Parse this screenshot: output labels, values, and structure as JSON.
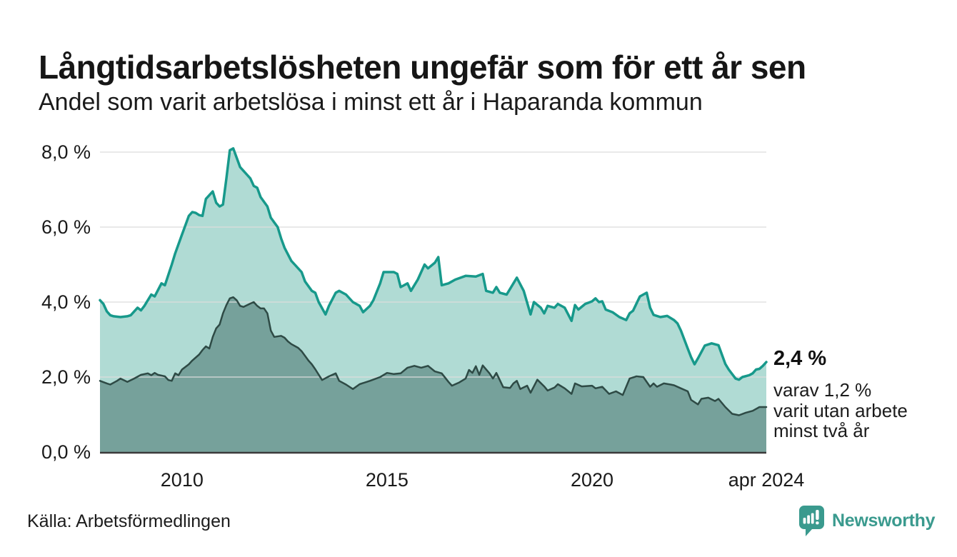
{
  "header": {
    "title": "Långtidsarbetslösheten ungefär som för ett år sen",
    "subtitle": "Andel som varit arbetslösa i minst ett år i Haparanda kommun"
  },
  "chart_data": {
    "type": "area",
    "title": "Långtidsarbetslösheten ungefär som för ett år sen",
    "subtitle": "Andel som varit arbetslösa i minst ett år i Haparanda kommun",
    "x_unit": "months since Jan 2008",
    "xlim_months": [
      0,
      195
    ],
    "ylim": [
      0,
      8.4
    ],
    "grid": true,
    "legend": "none",
    "grid_color": "#dcdcdc",
    "baseline_color": "#3b3b3b",
    "y_ticks": [
      {
        "value": 0,
        "label": "0,0 %"
      },
      {
        "value": 2,
        "label": "2,0 %"
      },
      {
        "value": 4,
        "label": "4,0 %"
      },
      {
        "value": 6,
        "label": "6,0 %"
      },
      {
        "value": 8,
        "label": "8,0 %"
      }
    ],
    "x_ticks": [
      {
        "month": 24,
        "label": "2010"
      },
      {
        "month": 84,
        "label": "2015"
      },
      {
        "month": 144,
        "label": "2020"
      },
      {
        "month": 195,
        "label": "apr 2024"
      }
    ],
    "series": [
      {
        "id": "minst-ett-ar",
        "name": "Andel arbetslösa minst ett år",
        "color": "#17998b",
        "fill": "#b0dbd4",
        "stroke_width": 3.5,
        "last_value_label": "2,4 %",
        "points": [
          [
            0,
            4.05
          ],
          [
            1,
            3.95
          ],
          [
            2,
            3.75
          ],
          [
            3,
            3.65
          ],
          [
            4,
            3.62
          ],
          [
            6,
            3.6
          ],
          [
            8,
            3.62
          ],
          [
            9,
            3.65
          ],
          [
            11,
            3.85
          ],
          [
            12,
            3.78
          ],
          [
            13,
            3.9
          ],
          [
            15,
            4.2
          ],
          [
            16,
            4.15
          ],
          [
            18,
            4.5
          ],
          [
            19,
            4.45
          ],
          [
            21,
            5.0
          ],
          [
            22,
            5.3
          ],
          [
            24,
            5.8
          ],
          [
            26,
            6.3
          ],
          [
            27,
            6.4
          ],
          [
            28,
            6.38
          ],
          [
            29,
            6.32
          ],
          [
            30,
            6.3
          ],
          [
            31,
            6.75
          ],
          [
            33,
            6.95
          ],
          [
            34,
            6.65
          ],
          [
            35,
            6.55
          ],
          [
            36,
            6.6
          ],
          [
            37,
            7.3
          ],
          [
            38,
            8.05
          ],
          [
            39,
            8.1
          ],
          [
            40,
            7.85
          ],
          [
            41,
            7.6
          ],
          [
            42,
            7.5
          ],
          [
            43,
            7.4
          ],
          [
            44,
            7.3
          ],
          [
            45,
            7.1
          ],
          [
            46,
            7.05
          ],
          [
            47,
            6.8
          ],
          [
            49,
            6.55
          ],
          [
            50,
            6.25
          ],
          [
            52,
            6.0
          ],
          [
            53,
            5.7
          ],
          [
            54,
            5.45
          ],
          [
            56,
            5.1
          ],
          [
            57,
            5.0
          ],
          [
            59,
            4.8
          ],
          [
            60,
            4.55
          ],
          [
            62,
            4.3
          ],
          [
            63,
            4.25
          ],
          [
            64,
            4.0
          ],
          [
            66,
            3.67
          ],
          [
            67,
            3.9
          ],
          [
            69,
            4.25
          ],
          [
            70,
            4.3
          ],
          [
            72,
            4.2
          ],
          [
            74,
            4.0
          ],
          [
            76,
            3.9
          ],
          [
            77,
            3.73
          ],
          [
            79,
            3.9
          ],
          [
            80,
            4.05
          ],
          [
            82,
            4.5
          ],
          [
            83,
            4.8
          ],
          [
            86,
            4.8
          ],
          [
            87,
            4.75
          ],
          [
            88,
            4.4
          ],
          [
            90,
            4.5
          ],
          [
            91,
            4.3
          ],
          [
            93,
            4.6
          ],
          [
            95,
            5.0
          ],
          [
            96,
            4.9
          ],
          [
            98,
            5.05
          ],
          [
            99,
            5.2
          ],
          [
            100,
            4.45
          ],
          [
            102,
            4.5
          ],
          [
            104,
            4.6
          ],
          [
            107,
            4.7
          ],
          [
            110,
            4.68
          ],
          [
            112,
            4.75
          ],
          [
            113,
            4.3
          ],
          [
            115,
            4.25
          ],
          [
            116,
            4.4
          ],
          [
            117,
            4.25
          ],
          [
            119,
            4.2
          ],
          [
            121,
            4.5
          ],
          [
            122,
            4.65
          ],
          [
            124,
            4.3
          ],
          [
            126,
            3.67
          ],
          [
            127,
            4.0
          ],
          [
            129,
            3.85
          ],
          [
            130,
            3.7
          ],
          [
            131,
            3.9
          ],
          [
            133,
            3.85
          ],
          [
            134,
            3.95
          ],
          [
            136,
            3.85
          ],
          [
            138,
            3.5
          ],
          [
            139,
            3.92
          ],
          [
            140,
            3.8
          ],
          [
            142,
            3.95
          ],
          [
            144,
            4.02
          ],
          [
            145,
            4.1
          ],
          [
            146,
            4.0
          ],
          [
            147,
            4.02
          ],
          [
            148,
            3.8
          ],
          [
            150,
            3.73
          ],
          [
            152,
            3.6
          ],
          [
            154,
            3.52
          ],
          [
            155,
            3.7
          ],
          [
            156,
            3.77
          ],
          [
            158,
            4.15
          ],
          [
            160,
            4.25
          ],
          [
            161,
            3.85
          ],
          [
            162,
            3.66
          ],
          [
            164,
            3.6
          ],
          [
            166,
            3.63
          ],
          [
            168,
            3.52
          ],
          [
            169,
            3.43
          ],
          [
            170,
            3.24
          ],
          [
            172,
            2.76
          ],
          [
            173,
            2.53
          ],
          [
            174,
            2.34
          ],
          [
            175,
            2.5
          ],
          [
            177,
            2.84
          ],
          [
            179,
            2.9
          ],
          [
            181,
            2.85
          ],
          [
            182,
            2.6
          ],
          [
            183,
            2.35
          ],
          [
            184,
            2.2
          ],
          [
            186,
            1.96
          ],
          [
            187,
            1.93
          ],
          [
            188,
            2.0
          ],
          [
            190,
            2.05
          ],
          [
            191,
            2.1
          ],
          [
            192,
            2.2
          ],
          [
            193,
            2.22
          ],
          [
            194,
            2.3
          ],
          [
            195,
            2.4
          ]
        ]
      },
      {
        "id": "minst-tva-ar",
        "name": "Andel arbetslösa minst två år",
        "color": "#2e4a45",
        "fill": "#76a19b",
        "stroke_width": 2.5,
        "last_value_label": "1,2 %",
        "points": [
          [
            0,
            1.9
          ],
          [
            2,
            1.83
          ],
          [
            3,
            1.8
          ],
          [
            5,
            1.9
          ],
          [
            6,
            1.96
          ],
          [
            8,
            1.87
          ],
          [
            10,
            1.96
          ],
          [
            12,
            2.06
          ],
          [
            14,
            2.1
          ],
          [
            15,
            2.05
          ],
          [
            16,
            2.11
          ],
          [
            17,
            2.06
          ],
          [
            19,
            2.02
          ],
          [
            20,
            1.92
          ],
          [
            21,
            1.9
          ],
          [
            22,
            2.1
          ],
          [
            23,
            2.05
          ],
          [
            24,
            2.2
          ],
          [
            26,
            2.34
          ],
          [
            27,
            2.44
          ],
          [
            29,
            2.6
          ],
          [
            30,
            2.72
          ],
          [
            31,
            2.82
          ],
          [
            32,
            2.76
          ],
          [
            33,
            3.07
          ],
          [
            34,
            3.3
          ],
          [
            35,
            3.4
          ],
          [
            36,
            3.7
          ],
          [
            37,
            3.92
          ],
          [
            38,
            4.1
          ],
          [
            39,
            4.13
          ],
          [
            40,
            4.05
          ],
          [
            41,
            3.9
          ],
          [
            42,
            3.87
          ],
          [
            44,
            3.96
          ],
          [
            45,
            4.0
          ],
          [
            46,
            3.9
          ],
          [
            47,
            3.83
          ],
          [
            48,
            3.83
          ],
          [
            49,
            3.7
          ],
          [
            50,
            3.24
          ],
          [
            51,
            3.07
          ],
          [
            53,
            3.1
          ],
          [
            54,
            3.05
          ],
          [
            55,
            2.95
          ],
          [
            56,
            2.88
          ],
          [
            58,
            2.78
          ],
          [
            59,
            2.69
          ],
          [
            61,
            2.44
          ],
          [
            62,
            2.34
          ],
          [
            63,
            2.21
          ],
          [
            65,
            1.92
          ],
          [
            67,
            2.02
          ],
          [
            69,
            2.1
          ],
          [
            70,
            1.9
          ],
          [
            72,
            1.8
          ],
          [
            74,
            1.68
          ],
          [
            76,
            1.81
          ],
          [
            79,
            1.9
          ],
          [
            82,
            2.0
          ],
          [
            84,
            2.11
          ],
          [
            86,
            2.08
          ],
          [
            88,
            2.1
          ],
          [
            90,
            2.25
          ],
          [
            92,
            2.3
          ],
          [
            94,
            2.25
          ],
          [
            96,
            2.3
          ],
          [
            98,
            2.15
          ],
          [
            100,
            2.1
          ],
          [
            102,
            1.87
          ],
          [
            103,
            1.77
          ],
          [
            105,
            1.85
          ],
          [
            107,
            1.96
          ],
          [
            108,
            2.19
          ],
          [
            109,
            2.11
          ],
          [
            110,
            2.29
          ],
          [
            111,
            2.06
          ],
          [
            112,
            2.31
          ],
          [
            114,
            2.1
          ],
          [
            115,
            1.96
          ],
          [
            116,
            2.11
          ],
          [
            118,
            1.73
          ],
          [
            120,
            1.71
          ],
          [
            121,
            1.83
          ],
          [
            122,
            1.9
          ],
          [
            123,
            1.68
          ],
          [
            125,
            1.77
          ],
          [
            126,
            1.58
          ],
          [
            128,
            1.93
          ],
          [
            130,
            1.75
          ],
          [
            131,
            1.64
          ],
          [
            133,
            1.72
          ],
          [
            134,
            1.81
          ],
          [
            136,
            1.7
          ],
          [
            138,
            1.55
          ],
          [
            139,
            1.83
          ],
          [
            141,
            1.75
          ],
          [
            144,
            1.77
          ],
          [
            145,
            1.7
          ],
          [
            147,
            1.74
          ],
          [
            149,
            1.55
          ],
          [
            151,
            1.62
          ],
          [
            153,
            1.52
          ],
          [
            155,
            1.96
          ],
          [
            157,
            2.02
          ],
          [
            159,
            2.0
          ],
          [
            161,
            1.74
          ],
          [
            162,
            1.83
          ],
          [
            163,
            1.74
          ],
          [
            165,
            1.83
          ],
          [
            167,
            1.8
          ],
          [
            168,
            1.78
          ],
          [
            170,
            1.7
          ],
          [
            172,
            1.62
          ],
          [
            173,
            1.39
          ],
          [
            175,
            1.27
          ],
          [
            176,
            1.42
          ],
          [
            178,
            1.45
          ],
          [
            180,
            1.36
          ],
          [
            181,
            1.42
          ],
          [
            183,
            1.2
          ],
          [
            185,
            1.02
          ],
          [
            187,
            0.98
          ],
          [
            189,
            1.05
          ],
          [
            191,
            1.1
          ],
          [
            193,
            1.2
          ],
          [
            195,
            1.2
          ]
        ]
      }
    ]
  },
  "annotation": {
    "value_label": "2,4 %",
    "detail_lines": [
      "varav 1,2 %",
      "varit utan arbete",
      "minst två år"
    ]
  },
  "footer": {
    "source": "Källa: Arbetsförmedlingen",
    "logo_text": "Newsworthy"
  },
  "colors": {
    "accent_teal": "#17998b",
    "dark_series": "#2e4a45",
    "light_fill": "#b0dbd4",
    "dark_fill": "#76a19b",
    "logo_teal": "#3a9a8e",
    "text": "#1a1a1a"
  }
}
